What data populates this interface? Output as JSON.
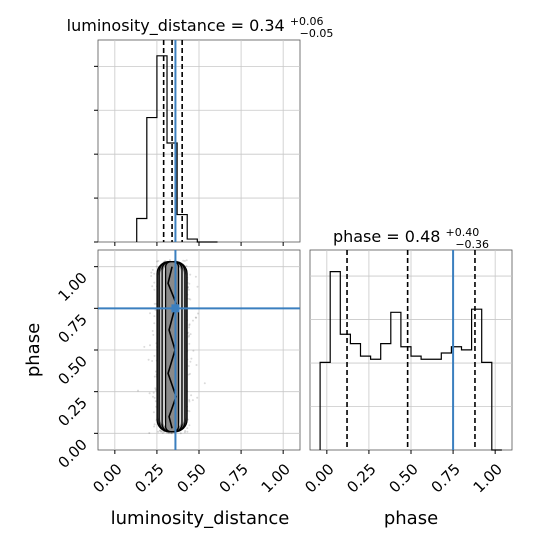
{
  "chart_data": [
    {
      "type": "histogram",
      "panel": "luminosity_distance",
      "title": {
        "main": "luminosity_distance = 0.34",
        "sup": "+0.06",
        "sub": "−0.05"
      },
      "xlim": [
        -0.1,
        1.1
      ],
      "grid": true,
      "bin_edges": [
        0.13,
        0.19,
        0.25,
        0.31,
        0.37,
        0.43,
        0.49,
        0.55,
        0.61
      ],
      "counts": [
        24,
        127,
        190,
        101,
        28,
        3,
        0,
        0
      ],
      "ylim": [
        0,
        200
      ],
      "quantile_lines": [
        0.29,
        0.34,
        0.4
      ],
      "truth": 0.36
    },
    {
      "type": "scatter",
      "panel": "luminosity_distance-phase",
      "xlabel": "luminosity_distance",
      "ylabel": "phase",
      "xlim": [
        -0.1,
        1.1
      ],
      "ylim": [
        -0.1,
        1.1
      ],
      "xticks": [
        "0.00",
        "0.25",
        "0.50",
        "0.75",
        "1.00"
      ],
      "yticks": [
        "0.00",
        "0.25",
        "0.50",
        "0.75",
        "1.00"
      ],
      "grid": true,
      "x_mean": 0.34,
      "x_std": 0.05,
      "y_range": [
        0.0,
        1.04
      ],
      "truth": {
        "x": 0.36,
        "y": 0.75
      }
    },
    {
      "type": "histogram",
      "panel": "phase",
      "title": {
        "main": "phase = 0.48",
        "sup": "+0.40",
        "sub": "−0.36"
      },
      "xlabel": "phase",
      "xlim": [
        -0.1,
        1.1
      ],
      "xticks": [
        "0.00",
        "0.25",
        "0.50",
        "0.75",
        "1.00"
      ],
      "grid": true,
      "bin_edges": [
        -0.04,
        0.02,
        0.08,
        0.14,
        0.2,
        0.26,
        0.32,
        0.38,
        0.44,
        0.5,
        0.56,
        0.62,
        0.68,
        0.74,
        0.8,
        0.86,
        0.92,
        0.98,
        1.04
      ],
      "counts": [
        28,
        57,
        37,
        34,
        30,
        29,
        34,
        44,
        33,
        30,
        29,
        29,
        31,
        33,
        32,
        45,
        28,
        0
      ],
      "ylim": [
        0,
        62
      ],
      "quantile_lines": [
        0.12,
        0.48,
        0.88
      ],
      "truth": 0.75
    }
  ]
}
